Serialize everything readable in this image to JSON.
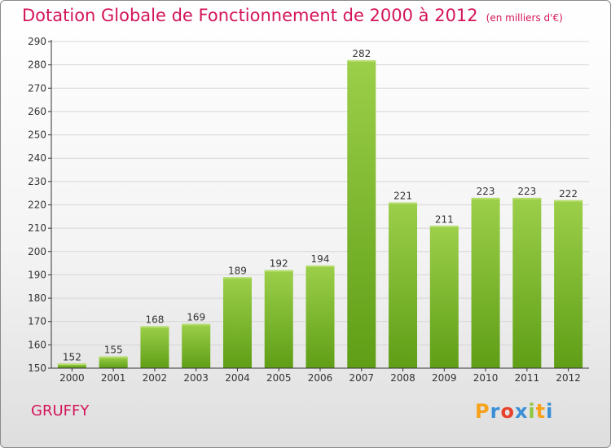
{
  "header": {
    "title": "Dotation Globale de Fonctionnement de 2000 à 2012",
    "unit_note": "(en milliers d'€)"
  },
  "commune": "GRUFFY",
  "logo": {
    "text": "Proxiti",
    "letters": [
      "P",
      "r",
      "o",
      "x",
      "i",
      "t",
      "i"
    ]
  },
  "colors": {
    "title": "#d4145a",
    "bar_top": "#9ccf4a",
    "bar_bottom": "#5f9e16",
    "grid": "#d6d6d6"
  },
  "chart_data": {
    "type": "bar",
    "categories": [
      "2000",
      "2001",
      "2002",
      "2003",
      "2004",
      "2005",
      "2006",
      "2007",
      "2008",
      "2009",
      "2010",
      "2011",
      "2012"
    ],
    "values": [
      152,
      155,
      168,
      169,
      189,
      192,
      194,
      282,
      221,
      211,
      223,
      223,
      222
    ],
    "ylim": [
      150,
      290
    ],
    "yticks": [
      150,
      160,
      170,
      180,
      190,
      200,
      210,
      220,
      230,
      240,
      250,
      260,
      270,
      280,
      290
    ],
    "grid": true,
    "title": "Dotation Globale de Fonctionnement de 2000 à 2012",
    "xlabel": "",
    "ylabel": ""
  }
}
